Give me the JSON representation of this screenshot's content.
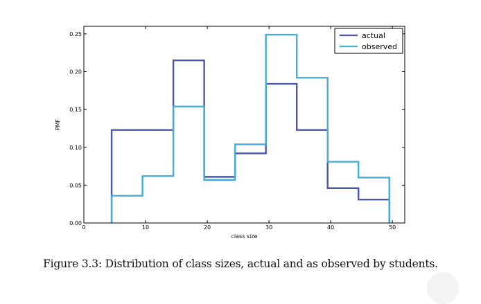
{
  "chart_data": {
    "type": "line",
    "step": true,
    "xlabel": "class size",
    "ylabel": "PMF",
    "xlim": [
      0,
      52
    ],
    "ylim": [
      0,
      0.26
    ],
    "xticks": [
      0,
      10,
      20,
      30,
      40,
      50
    ],
    "yticks": [
      0.0,
      0.05,
      0.1,
      0.15,
      0.2,
      0.25
    ],
    "ytick_labels": [
      "0.00",
      "0.05",
      "0.10",
      "0.15",
      "0.20",
      "0.25"
    ],
    "grid": false,
    "legend_position": "top-right",
    "series": [
      {
        "name": "actual",
        "color": "#4a57a6",
        "x": [
          4.5,
          14.5,
          19.5,
          24.5,
          29.5,
          34.5,
          39.5,
          44.5,
          49.5
        ],
        "y": [
          0.123,
          0.215,
          0.061,
          0.092,
          0.184,
          0.123,
          0.046,
          0.031,
          0.0
        ]
      },
      {
        "name": "observed",
        "color": "#45aed2",
        "x": [
          4.5,
          9.5,
          14.5,
          19.5,
          24.5,
          29.5,
          34.5,
          39.5,
          44.5,
          49.5
        ],
        "y": [
          0.036,
          0.062,
          0.154,
          0.057,
          0.104,
          0.249,
          0.192,
          0.081,
          0.06,
          0.0
        ]
      }
    ]
  },
  "caption": "Figure 3.3: Distribution of class sizes, actual and as observed by students."
}
